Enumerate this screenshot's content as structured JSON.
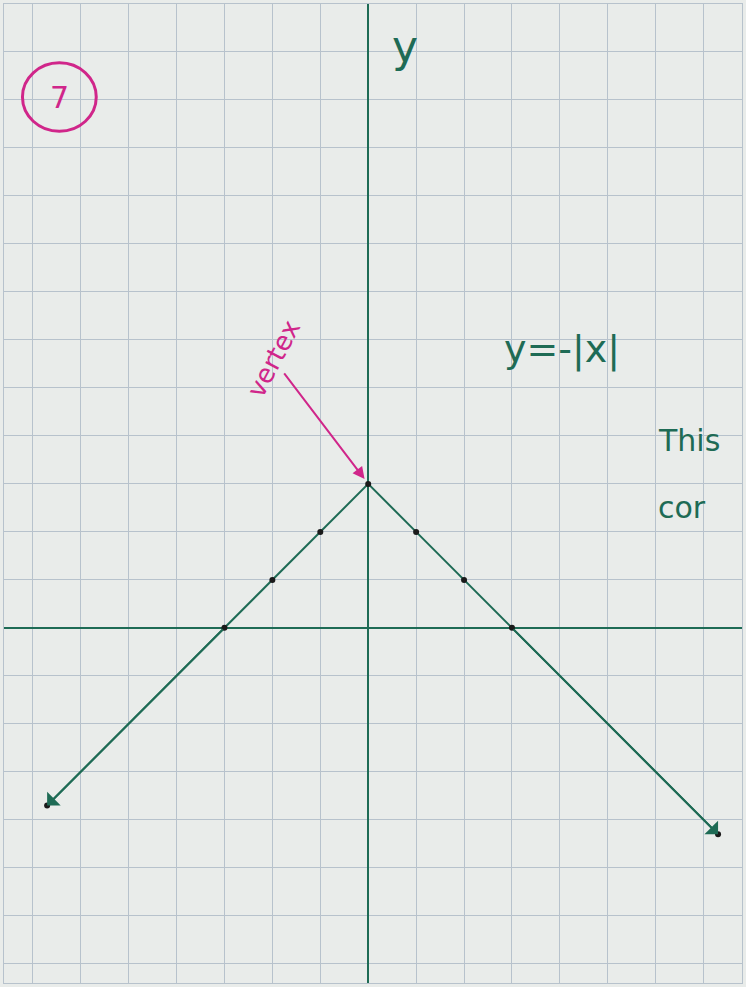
{
  "chart_data": {
    "type": "line",
    "label": "7",
    "y_label": "y",
    "x": [
      -6.7,
      -3,
      -2,
      -1,
      0,
      1,
      2,
      3,
      7.3
    ],
    "values": [
      -3.7,
      0,
      1,
      2,
      3,
      2,
      1,
      0,
      -4.3
    ],
    "color": "#1e6b55",
    "marker": "circle",
    "line_style": "solid",
    "xlim": [
      -7.6,
      7.8
    ],
    "ylim": [
      -7.4,
      13
    ],
    "xticks": [
      -7,
      -6,
      -5,
      -4,
      -3,
      -2,
      -1,
      0,
      1,
      2,
      3,
      4,
      5,
      6,
      7
    ],
    "yticks": [
      -7,
      -6,
      -5,
      -4,
      -3,
      -2,
      -1,
      0,
      1,
      2,
      3,
      4,
      5,
      6,
      7,
      8,
      9,
      10,
      11,
      12,
      13
    ],
    "grid": true,
    "tick_labels": false,
    "vertex": {
      "text": "vertex",
      "x": 0,
      "y": 3,
      "color": "#d0268a"
    },
    "annotations": [
      {
        "text": "y=-|x|",
        "x": 2.8,
        "y": 5.8
      },
      {
        "text": "This",
        "x": 6.0,
        "y": 3.9
      },
      {
        "text": "cor",
        "x": 6.0,
        "y": 2.5
      }
    ]
  }
}
